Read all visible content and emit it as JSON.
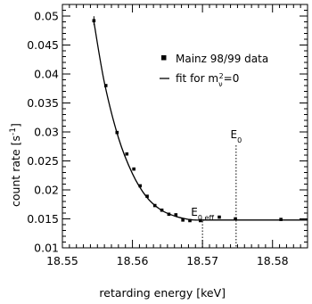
{
  "chart_data": {
    "type": "scatter",
    "title": "",
    "xlabel": "retarding energy  [keV]",
    "ylabel_main": "count rate  [s",
    "ylabel_sup": "-1",
    "ylabel_close": "]",
    "xlim": [
      18.55,
      18.585
    ],
    "ylim": [
      0.01,
      0.052
    ],
    "xticks": [
      18.55,
      18.56,
      18.57,
      18.58
    ],
    "xtick_labels": [
      "18.55",
      "18.56",
      "18.57",
      "18.58"
    ],
    "x_minor_step": 0.001,
    "yticks": [
      0.01,
      0.015,
      0.02,
      0.025,
      0.03,
      0.035,
      0.04,
      0.045,
      0.05
    ],
    "ytick_labels": [
      "0.01",
      "0.015",
      "0.02",
      "0.025",
      "0.03",
      "0.035",
      "0.04",
      "0.045",
      "0.05"
    ],
    "y_minor_step": 0.001,
    "grid": false,
    "legend_position": "top-right",
    "series": [
      {
        "name": "Mainz 98/99 data",
        "type": "scatter",
        "marker": "square",
        "x": [
          18.5545,
          18.5562,
          18.5578,
          18.5592,
          18.5602,
          18.5611,
          18.5621,
          18.5632,
          18.5642,
          18.5652,
          18.5662,
          18.5672,
          18.5682,
          18.5697,
          18.5724,
          18.5747,
          18.5812
        ],
        "y": [
          0.0492,
          0.038,
          0.0299,
          0.0262,
          0.0236,
          0.0207,
          0.0189,
          0.0173,
          0.0165,
          0.0158,
          0.0157,
          0.0148,
          0.0147,
          0.0147,
          0.0153,
          0.015,
          0.0149
        ]
      },
      {
        "name_prefix": "fit for m",
        "name_sub": "ν",
        "name_sup": "2",
        "name_suffix": "=0",
        "type": "line",
        "x": [
          18.5545,
          18.556,
          18.558,
          18.56,
          18.562,
          18.564,
          18.566,
          18.568,
          18.569,
          18.57,
          18.575,
          18.585
        ],
        "y": [
          0.049,
          0.0385,
          0.029,
          0.0228,
          0.0188,
          0.0166,
          0.0155,
          0.0149,
          0.0148,
          0.0148,
          0.0148,
          0.0148
        ]
      }
    ],
    "markers": [
      {
        "label_main": "E",
        "label_sub": "0,eff",
        "x": 18.57
      },
      {
        "label_main": "E",
        "label_sub": "0",
        "x": 18.5748
      }
    ]
  }
}
